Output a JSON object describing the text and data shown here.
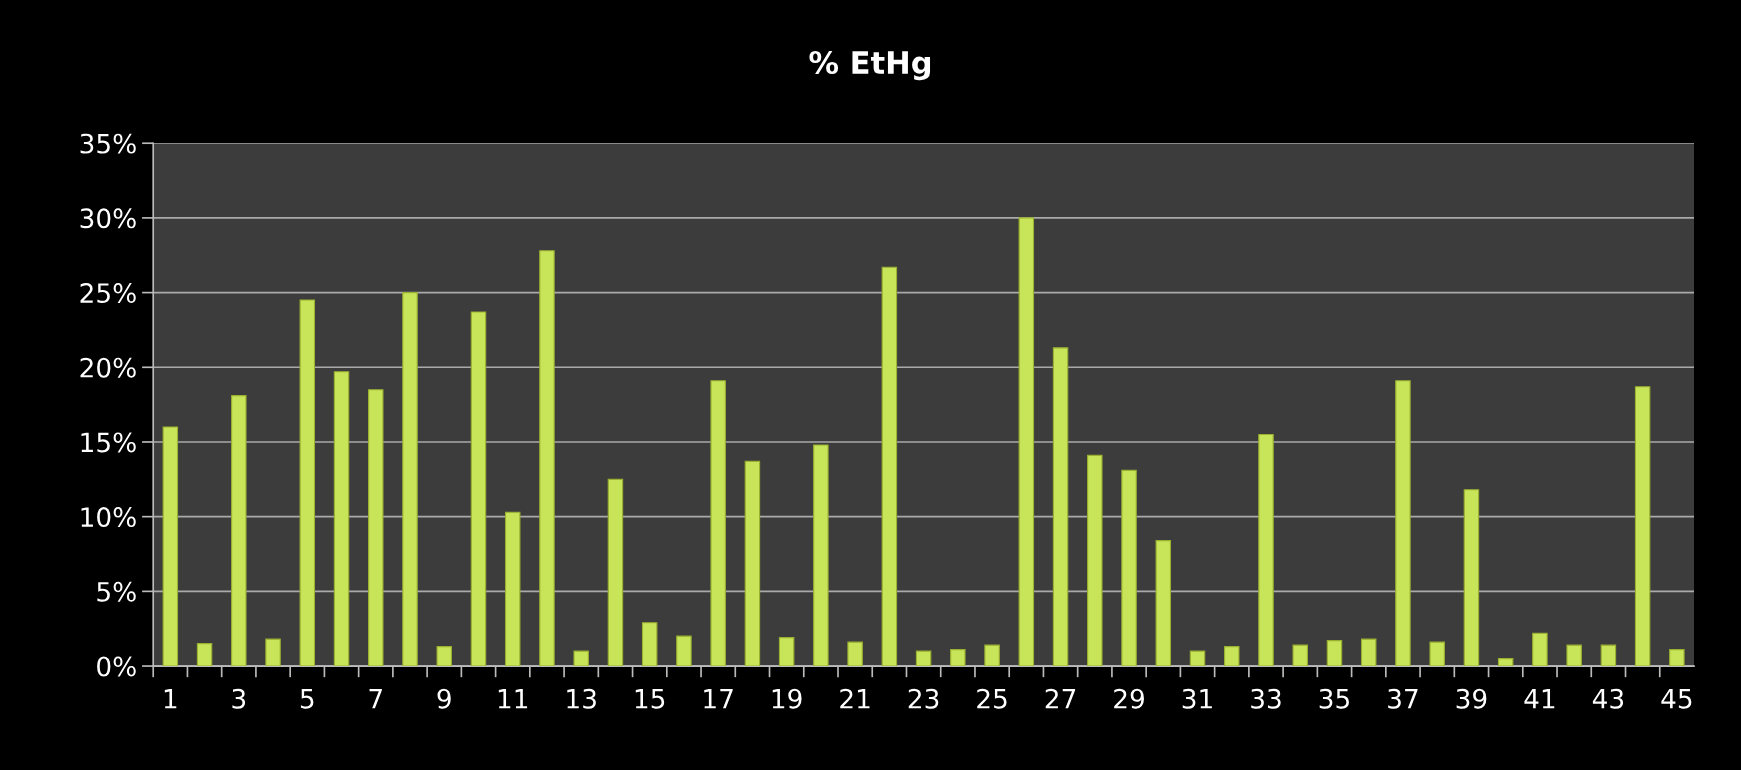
{
  "chart_data": {
    "type": "bar",
    "title": "% EtHg",
    "categories": [
      "1",
      null,
      "3",
      null,
      "5",
      null,
      "7",
      null,
      "9",
      null,
      "11",
      null,
      "13",
      null,
      "15",
      null,
      "17",
      null,
      "19",
      null,
      "21",
      null,
      "23",
      null,
      "25",
      null,
      "27",
      null,
      "29",
      null,
      "31",
      null,
      "33",
      null,
      "35",
      null,
      "37",
      null,
      "39",
      null,
      "41",
      null,
      "43",
      null,
      "45"
    ],
    "values": [
      16.0,
      1.5,
      18.1,
      1.8,
      24.5,
      19.7,
      18.5,
      25.0,
      1.3,
      23.7,
      10.3,
      27.8,
      1.0,
      12.5,
      2.9,
      2.0,
      19.1,
      13.7,
      1.9,
      14.8,
      1.6,
      26.7,
      1.0,
      1.1,
      1.4,
      30.0,
      21.3,
      14.1,
      13.1,
      8.4,
      1.0,
      1.3,
      15.5,
      1.4,
      1.7,
      1.8,
      19.1,
      1.6,
      11.8,
      0.5,
      2.2,
      1.4,
      1.4,
      18.7,
      1.1
    ],
    "color": "#c8e458",
    "ylim": [
      0,
      35
    ],
    "yticks": [
      {
        "value": 0,
        "label": "0%"
      },
      {
        "value": 5,
        "label": "5%"
      },
      {
        "value": 10,
        "label": "10%"
      },
      {
        "value": 15,
        "label": "15%"
      },
      {
        "value": 20,
        "label": "20%"
      },
      {
        "value": 25,
        "label": "25%"
      },
      {
        "value": 30,
        "label": "30%"
      },
      {
        "value": 35,
        "label": "35%"
      }
    ],
    "grid": "y"
  }
}
